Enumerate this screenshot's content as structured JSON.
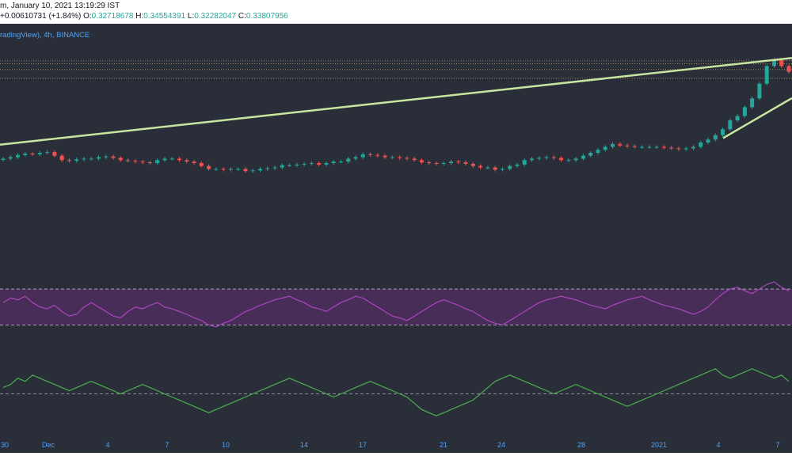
{
  "header": {
    "line1": "m, January 10, 2021 13:19:29 IST",
    "change": "+0.00610731 (+1.84%)",
    "o_label": "O:",
    "o_value": "0.32718678",
    "h_label": "H:",
    "h_value": "0.34554391",
    "l_label": "L:",
    "l_value": "0.32282047",
    "c_label": "C:",
    "c_value": "0.33807956"
  },
  "legend": "radingView), 4h, BINANCE",
  "colors": {
    "background": "#2a2e39",
    "up": "#26a69a",
    "down": "#ef5350",
    "trendline": "#c8e6a0",
    "rsi": "#ab47bc",
    "rsi_band": "#4a2e5c",
    "osc": "#4caf50",
    "axis_text": "#4fa3f7"
  },
  "chart_data": [
    {
      "type": "candlestick",
      "ylim": [
        0.22,
        0.36
      ],
      "support_levels": [
        0.3455,
        0.3436,
        0.3397,
        0.3337
      ],
      "trendlines": [
        {
          "from": [
            "Nov 30",
            0.2885
          ],
          "to": [
            "Jan 7",
            0.3475
          ]
        },
        {
          "from": [
            "Jan 4",
            0.293
          ],
          "to": [
            "Jan 8",
            0.3202
          ]
        }
      ],
      "close": [
        0.279,
        0.28,
        0.2815,
        0.2825,
        0.282,
        0.283,
        0.2835,
        0.281,
        0.278,
        0.2775,
        0.2785,
        0.279,
        0.279,
        0.28,
        0.2805,
        0.2795,
        0.278,
        0.2775,
        0.277,
        0.2765,
        0.276,
        0.278,
        0.279,
        0.279,
        0.278,
        0.277,
        0.276,
        0.274,
        0.272,
        0.272,
        0.2715,
        0.272,
        0.272,
        0.2705,
        0.271,
        0.272,
        0.2725,
        0.273,
        0.2745,
        0.2745,
        0.275,
        0.2755,
        0.276,
        0.275,
        0.276,
        0.277,
        0.277,
        0.279,
        0.28,
        0.282,
        0.2815,
        0.281,
        0.28,
        0.28,
        0.2795,
        0.279,
        0.278,
        0.2765,
        0.276,
        0.2755,
        0.276,
        0.277,
        0.2765,
        0.2755,
        0.274,
        0.273,
        0.273,
        0.2715,
        0.272,
        0.274,
        0.275,
        0.278,
        0.279,
        0.2795,
        0.28,
        0.2795,
        0.278,
        0.278,
        0.279,
        0.281,
        0.283,
        0.285,
        0.287,
        0.289,
        0.288,
        0.2875,
        0.287,
        0.287,
        0.287,
        0.287,
        0.2865,
        0.286,
        0.2855,
        0.286,
        0.287,
        0.29,
        0.292,
        0.295,
        0.299,
        0.305,
        0.308,
        0.314,
        0.32,
        0.33,
        0.342,
        0.346,
        0.342,
        0.3381
      ],
      "rsi": {
        "upper": 70,
        "lower": 30,
        "ylim": [
          20,
          85
        ],
        "values": [
          55,
          60,
          58,
          62,
          55,
          50,
          48,
          52,
          45,
          40,
          42,
          50,
          55,
          50,
          45,
          40,
          38,
          45,
          50,
          48,
          52,
          55,
          50,
          48,
          45,
          42,
          38,
          35,
          30,
          28,
          32,
          35,
          40,
          45,
          48,
          52,
          55,
          58,
          60,
          62,
          58,
          55,
          50,
          48,
          45,
          50,
          55,
          58,
          62,
          60,
          55,
          50,
          45,
          40,
          38,
          35,
          40,
          45,
          50,
          55,
          58,
          55,
          52,
          48,
          45,
          40,
          35,
          32,
          30,
          35,
          40,
          45,
          50,
          55,
          58,
          60,
          62,
          60,
          58,
          55,
          52,
          50,
          48,
          52,
          55,
          58,
          60,
          62,
          58,
          55,
          52,
          50,
          48,
          45,
          42,
          45,
          50,
          58,
          65,
          70,
          72,
          68,
          65,
          70,
          75,
          78,
          72,
          68
        ]
      },
      "oscillator": {
        "ylim": [
          -12,
          12
        ],
        "values": [
          2,
          3,
          5,
          4,
          6,
          5,
          4,
          3,
          2,
          1,
          2,
          3,
          4,
          3,
          2,
          1,
          0,
          1,
          2,
          3,
          2,
          1,
          0,
          -1,
          -2,
          -3,
          -4,
          -5,
          -6,
          -5,
          -4,
          -3,
          -2,
          -1,
          0,
          1,
          2,
          3,
          4,
          5,
          4,
          3,
          2,
          1,
          0,
          -1,
          0,
          1,
          2,
          3,
          4,
          3,
          2,
          1,
          0,
          -1,
          -3,
          -5,
          -6,
          -7,
          -6,
          -5,
          -4,
          -3,
          -2,
          0,
          2,
          4,
          5,
          6,
          5,
          4,
          3,
          2,
          1,
          0,
          1,
          2,
          3,
          2,
          1,
          0,
          -1,
          -2,
          -3,
          -4,
          -3,
          -2,
          -1,
          0,
          1,
          2,
          3,
          4,
          5,
          6,
          7,
          8,
          6,
          5,
          6,
          7,
          8,
          7,
          6,
          5,
          6,
          4
        ]
      },
      "x_tick_labels": [
        "30",
        "Dec",
        "4",
        "7",
        "10",
        "14",
        "17",
        "21",
        "24",
        "28",
        "2021",
        "4",
        "7"
      ]
    }
  ]
}
